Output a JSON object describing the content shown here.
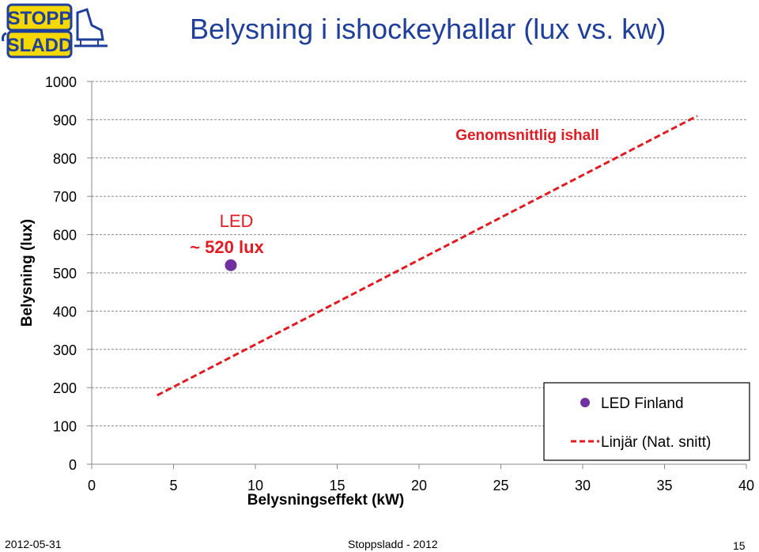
{
  "slide": {
    "title": "Belysning i ishockeyhallar (lux vs. kw)",
    "logo": {
      "line1": "STOPP",
      "line2": "SLADD",
      "icon": "skate-plug-logo-icon"
    },
    "footer_date": "2012-05-31",
    "footer_center": "Stoppsladd - 2012",
    "page_number": "15"
  },
  "colors": {
    "trend": "#e01b22",
    "point": "#7030a0",
    "title": "#1f3f9a",
    "annotation_trend": "#e01b22",
    "annotation_led": "#e01b22"
  },
  "chart_data": {
    "type": "scatter",
    "xlabel": "Belysningseffekt (kW)",
    "ylabel": "Belysning (lux)",
    "xlim": [
      0,
      40
    ],
    "ylim": [
      0,
      1000
    ],
    "x_ticks": [
      0,
      5,
      10,
      15,
      20,
      25,
      30,
      35,
      40
    ],
    "y_ticks": [
      0,
      100,
      200,
      300,
      400,
      500,
      600,
      700,
      800,
      900,
      1000
    ],
    "grid": "horizontal dashed",
    "legend_position": "bottom-right",
    "series": [
      {
        "name": "LED Finland",
        "kind": "point",
        "points": [
          [
            8.5,
            520
          ]
        ]
      },
      {
        "name": "Linjär (Nat. snitt)",
        "kind": "dashed-line",
        "points": [
          [
            4,
            180
          ],
          [
            37,
            910
          ]
        ]
      }
    ],
    "annotations": {
      "trend_label": "Genomsnittlig ishall",
      "led_label_line1": "LED",
      "led_label_line2": "~ 520 lux"
    }
  }
}
